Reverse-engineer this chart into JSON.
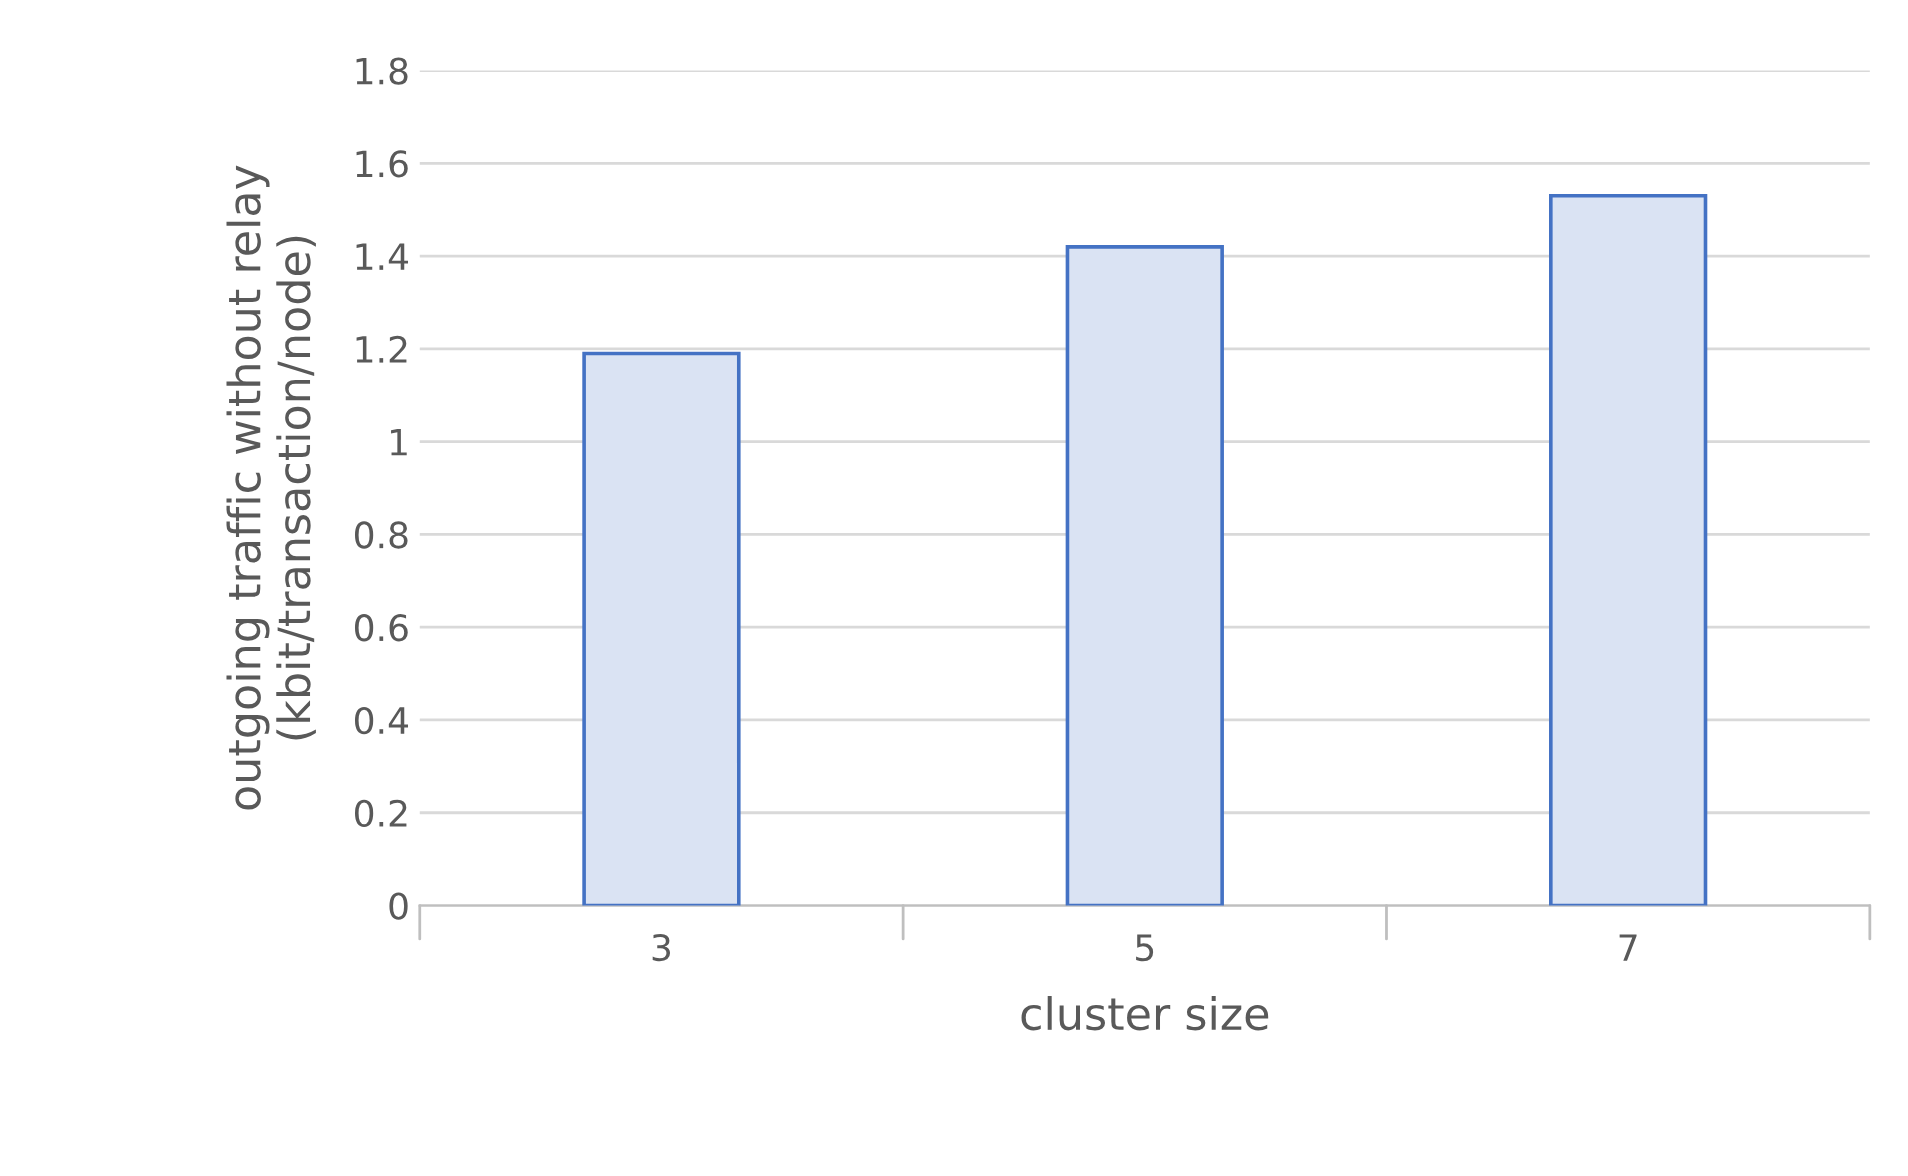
{
  "chart_data": {
    "type": "bar",
    "xlabel": "cluster size",
    "ylabel": "outgoing traffic without relay\n(kbit/transaction/node)",
    "categories": [
      "3",
      "5",
      "7"
    ],
    "series": [
      {
        "color": "#dae3f3",
        "values": [
          1.19,
          1.42,
          1.53
        ]
      }
    ],
    "ylim": [
      0,
      1.8
    ],
    "yticks": [
      0,
      {
        "value": 0.2,
        "label": "0.2"
      },
      {
        "value": 0.4,
        "label": "0.4"
      },
      {
        "value": 0.6,
        "label": "0.6"
      },
      {
        "value": 0.8,
        "label": "0.8"
      },
      1,
      {
        "value": 1.2,
        "label": "1.2"
      },
      {
        "value": 1.4,
        "label": "1.4"
      },
      {
        "value": 1.6,
        "label": "1.6"
      },
      {
        "value": 1.8,
        "label": "1.8"
      }
    ],
    "grid": "y"
  }
}
